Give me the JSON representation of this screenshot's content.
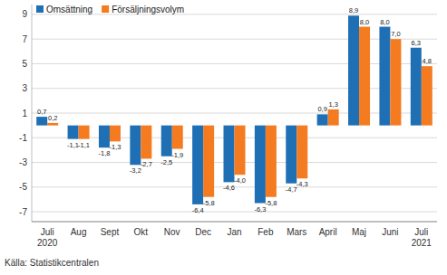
{
  "chart_data": {
    "type": "bar",
    "source": "Källa: Statistikcentralen",
    "categories": [
      "Juli 2020",
      "Aug",
      "Sept",
      "Okt",
      "Nov",
      "Dec",
      "Jan",
      "Feb",
      "Mars",
      "April",
      "Maj",
      "Juni",
      "Juli 2021"
    ],
    "series": [
      {
        "name": "Omsättning",
        "color": "#1f6fb4",
        "values": [
          0.7,
          -1.1,
          -1.8,
          -3.2,
          -2.5,
          -6.4,
          -4.6,
          -6.3,
          -4.7,
          0.9,
          8.9,
          8.0,
          6.3
        ],
        "value_labels": [
          "0,7",
          "-1,1",
          "-1,8",
          "-3,2",
          "-2,5",
          "-6,4",
          "-4,6",
          "-6,3",
          "-4,7",
          "0,9",
          "8,9",
          "8,0",
          "6,3"
        ]
      },
      {
        "name": "Försäljningsvolym",
        "color": "#f47b20",
        "values": [
          0.2,
          -1.1,
          -1.3,
          -2.7,
          -1.9,
          -5.8,
          -4.0,
          -5.8,
          -4.3,
          1.3,
          8.0,
          7.0,
          4.8
        ],
        "value_labels": [
          "0,2",
          "-1,1",
          "-1,3",
          "-2,7",
          "-1,9",
          "-5,8",
          "-4,0",
          "-5,8",
          "-4,3",
          "1,3",
          "8,0",
          "7,0",
          "4,8"
        ]
      }
    ],
    "ylim": [
      -7.8,
      9.8
    ],
    "yticks": [
      -7,
      -5,
      -3,
      -1,
      1,
      3,
      5,
      7,
      9
    ],
    "grid": true,
    "legend": "top-left",
    "data_labels": true
  }
}
